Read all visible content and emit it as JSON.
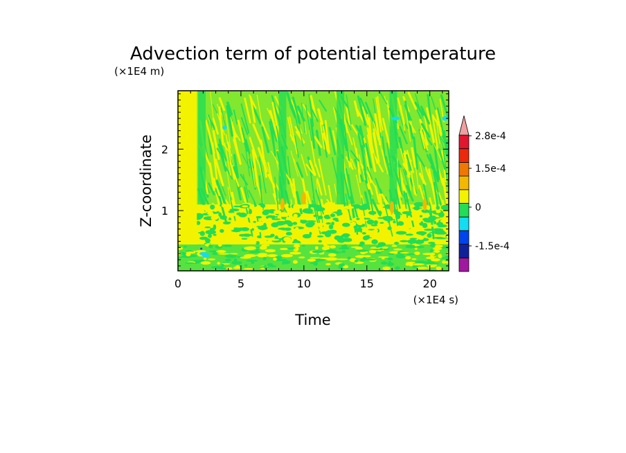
{
  "chart_data": {
    "type": "heatmap",
    "title": "Advection term of potential temperature",
    "xlabel": "Time",
    "ylabel": "Z-coordinate",
    "x_unit": "(×1E4 s)",
    "y_unit": "(×1E4 m)",
    "xlim": [
      0,
      21.5
    ],
    "ylim": [
      0.02,
      2.95
    ],
    "x_ticks": [
      0,
      5,
      10,
      15,
      20
    ],
    "y_ticks": [
      1,
      2
    ],
    "x_tick_labels": [
      "0",
      "5",
      "10",
      "15",
      "20"
    ],
    "y_tick_labels": [
      "1",
      "2"
    ],
    "colorbar": {
      "levels": [
        -0.00025,
        -0.0002,
        -0.00015,
        -0.0001,
        -5e-05,
        0,
        5e-05,
        0.0001,
        0.00015,
        0.0002,
        0.00025,
        0.00028
      ],
      "colors": [
        "#a0189f",
        "#10229a",
        "#0044ee",
        "#13ddf2",
        "#22dd55",
        "#f3f300",
        "#f3b800",
        "#f07800",
        "#ec2a0b",
        "#e0172f",
        "#f0a0a0"
      ],
      "labels": [
        "2.8e-4",
        "1.5e-4",
        "0",
        "-1.5e-4"
      ],
      "extend": "max"
    },
    "field_description": [
      {
        "region": "t 0-1.5, all z",
        "value": 2e-05
      },
      {
        "region": "t >1.5, z >1.1 streaks",
        "value": -2e-05
      },
      {
        "region": "z 0.02-0.45 band",
        "value": -3e-05
      }
    ]
  },
  "colors": {
    "background": "#ffffff",
    "axis": "#000000"
  }
}
